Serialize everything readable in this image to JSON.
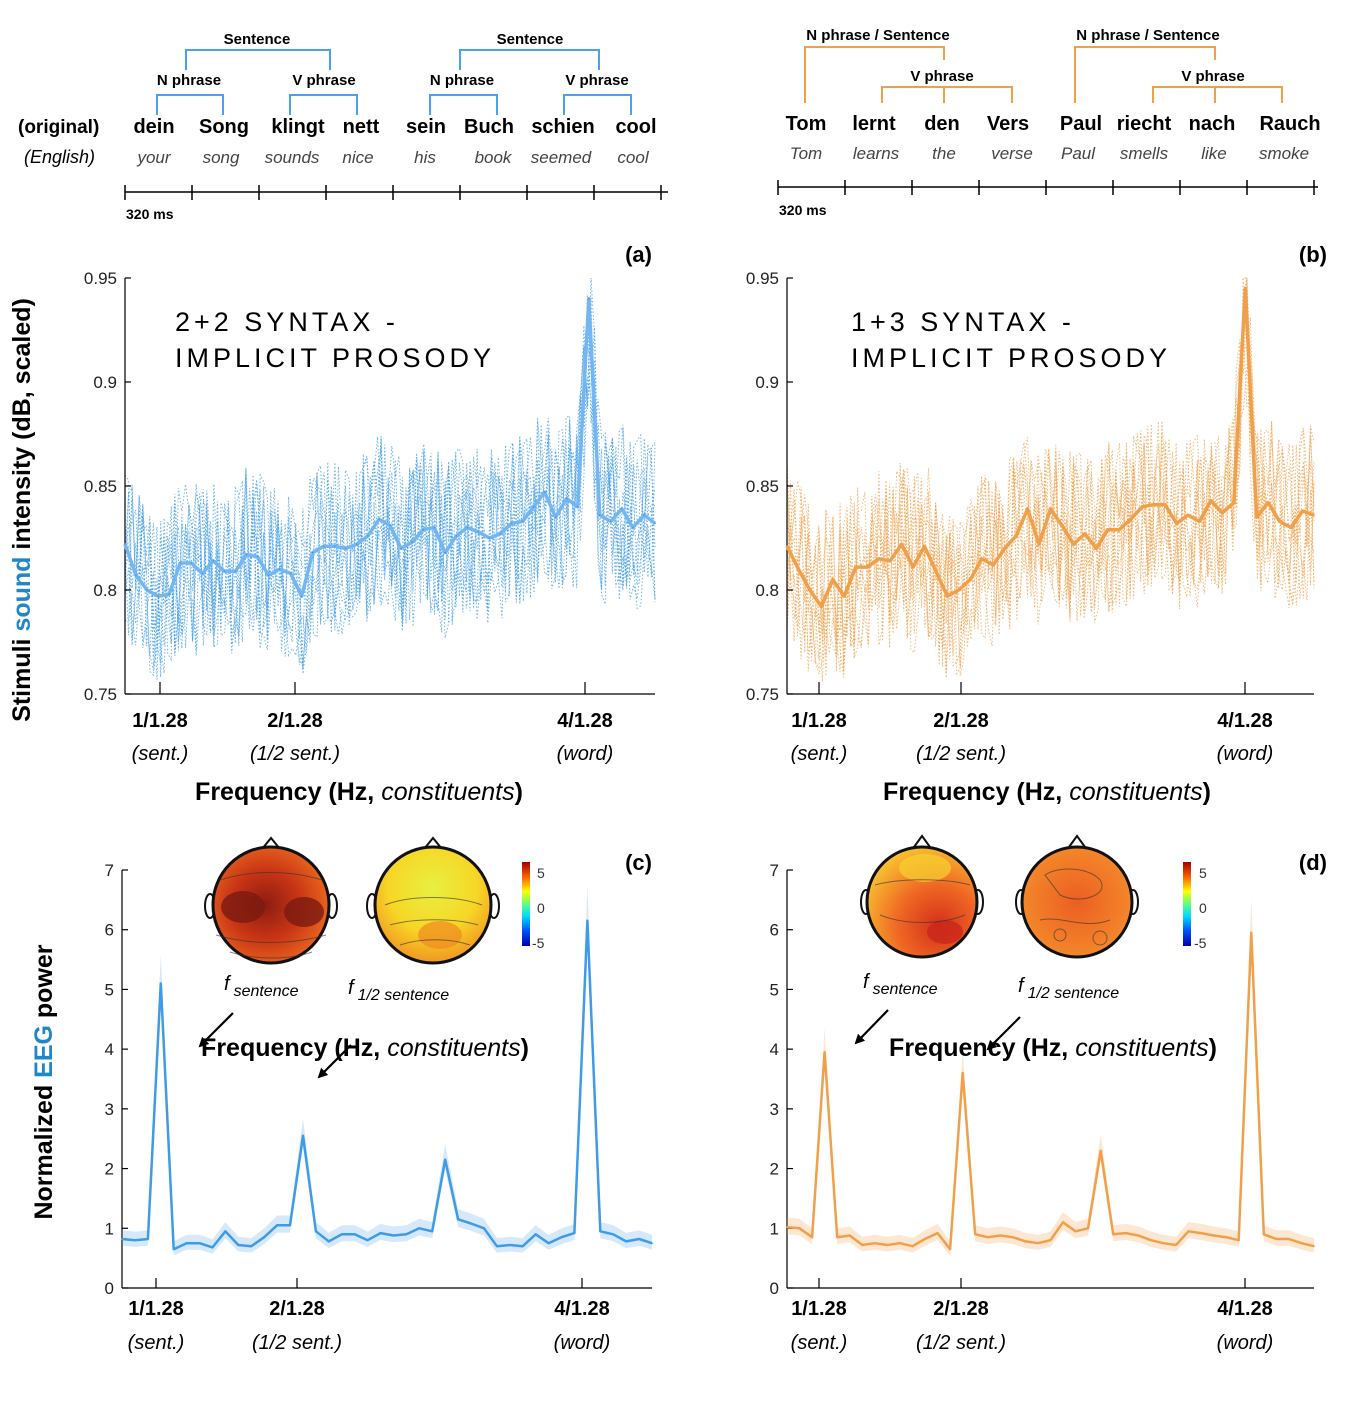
{
  "colors": {
    "blue": "#3f9be6",
    "blue_label": "#1f86c8",
    "orange": "#f0a04b",
    "topo_outline": "#111111"
  },
  "ylabels": {
    "top": {
      "pre": "Stimuli ",
      "hl": "sound",
      "post": " intensity (dB, scaled)"
    },
    "bottom": {
      "pre": "Normalized ",
      "hl": "EEG",
      "post": " power"
    }
  },
  "trees": [
    {
      "row_labels": [
        "(original)",
        "(English)"
      ],
      "words": [
        "dein",
        "Song",
        "klingt",
        "nett",
        "sein",
        "Buch",
        "schien",
        "cool"
      ],
      "gloss": [
        "your",
        "song",
        "sounds",
        "nice",
        "his",
        "book",
        "seemed",
        "cool"
      ],
      "nodes": {
        "top": "Sentence",
        "np": "N phrase",
        "vp": "V phrase"
      },
      "timeline_label": "320 ms"
    },
    {
      "words": [
        "Tom",
        "lernt",
        "den",
        "Vers",
        "Paul",
        "riecht",
        "nach",
        "Rauch"
      ],
      "gloss": [
        "Tom",
        "learns",
        "the",
        "verse",
        "Paul",
        "smells",
        "like",
        "smoke"
      ],
      "nodes": {
        "top": "N phrase / Sentence",
        "vp": "V phrase"
      },
      "timeline_label": "320 ms"
    }
  ],
  "chart_data": [
    {
      "panel": "(a)",
      "type": "line",
      "color": "blue",
      "title_lines": [
        "2+2 SYNTAX -",
        "IMPLICIT PROSODY"
      ],
      "ylim": [
        0.75,
        0.95
      ],
      "yticks": [
        "0.75",
        "0.8",
        "0.85",
        "0.9",
        "0.95"
      ],
      "xticks": [
        {
          "label": "1/1.28",
          "sub": "(sent.)"
        },
        {
          "label": "2/1.28",
          "sub": "(1/2 sent.)"
        },
        {
          "label": "4/1.28",
          "sub": "(word)"
        }
      ],
      "xlabel": {
        "pre": "Frequency (Hz, ",
        "it": "constituents",
        "post": ")"
      },
      "series": [
        {
          "role": "mean",
          "values": [
            0.822,
            0.807,
            0.8,
            0.797,
            0.798,
            0.813,
            0.813,
            0.808,
            0.814,
            0.809,
            0.809,
            0.817,
            0.816,
            0.807,
            0.81,
            0.808,
            0.797,
            0.818,
            0.821,
            0.821,
            0.82,
            0.822,
            0.826,
            0.834,
            0.831,
            0.82,
            0.823,
            0.829,
            0.83,
            0.818,
            0.826,
            0.83,
            0.828,
            0.825,
            0.827,
            0.832,
            0.833,
            0.84,
            0.847,
            0.835,
            0.844,
            0.84,
            0.94,
            0.836,
            0.833,
            0.839,
            0.83,
            0.836,
            0.832
          ]
        }
      ]
    },
    {
      "panel": "(b)",
      "type": "line",
      "color": "orange",
      "title_lines": [
        "1+3 SYNTAX -",
        "IMPLICIT PROSODY"
      ],
      "ylim": [
        0.75,
        0.95
      ],
      "yticks": [
        "0.75",
        "0.8",
        "0.85",
        "0.9",
        "0.95"
      ],
      "xticks": [
        {
          "label": "1/1.28",
          "sub": "(sent.)"
        },
        {
          "label": "2/1.28",
          "sub": "(1/2 sent.)"
        },
        {
          "label": "4/1.28",
          "sub": "(word)"
        }
      ],
      "xlabel": {
        "pre": "Frequency (Hz, ",
        "it": "constituents",
        "post": ")"
      },
      "series": [
        {
          "role": "mean",
          "values": [
            0.821,
            0.81,
            0.8,
            0.792,
            0.805,
            0.797,
            0.811,
            0.811,
            0.815,
            0.814,
            0.822,
            0.811,
            0.821,
            0.809,
            0.797,
            0.8,
            0.805,
            0.815,
            0.812,
            0.82,
            0.826,
            0.839,
            0.822,
            0.839,
            0.831,
            0.822,
            0.827,
            0.82,
            0.829,
            0.829,
            0.834,
            0.84,
            0.841,
            0.841,
            0.832,
            0.836,
            0.833,
            0.843,
            0.837,
            0.842,
            0.945,
            0.835,
            0.842,
            0.833,
            0.83,
            0.838,
            0.836
          ]
        }
      ]
    },
    {
      "panel": "(c)",
      "type": "line",
      "color": "blue",
      "ylim": [
        0,
        7
      ],
      "yticks": [
        "0",
        "1",
        "2",
        "3",
        "4",
        "5",
        "6",
        "7"
      ],
      "xticks": [
        {
          "label": "1/1.28",
          "sub": "(sent.)"
        },
        {
          "label": "2/1.28",
          "sub": "(1/2 sent.)"
        },
        {
          "label": "4/1.28",
          "sub": "(word)"
        }
      ],
      "xlabel": {
        "pre": "Frequency (Hz, ",
        "it": "constituents",
        "post": ")"
      },
      "annotations": [
        {
          "f": "f",
          "sub": "sentence"
        },
        {
          "f": "f",
          "sub": "1/2 sentence"
        }
      ],
      "colorbar": {
        "ticks": [
          "5",
          "0",
          "-5"
        ],
        "range": [
          -5,
          5
        ]
      },
      "series": [
        {
          "role": "mean",
          "values": [
            0.82,
            0.8,
            0.82,
            5.1,
            0.65,
            0.75,
            0.75,
            0.68,
            0.95,
            0.72,
            0.7,
            0.85,
            1.05,
            1.05,
            2.55,
            0.95,
            0.78,
            0.9,
            0.9,
            0.8,
            0.92,
            0.88,
            0.9,
            1.0,
            0.95,
            2.15,
            1.15,
            1.08,
            1.0,
            0.7,
            0.72,
            0.7,
            0.9,
            0.75,
            0.85,
            0.92,
            6.15,
            0.95,
            0.9,
            0.78,
            0.82,
            0.75
          ]
        }
      ]
    },
    {
      "panel": "(d)",
      "type": "line",
      "color": "orange",
      "ylim": [
        0,
        7
      ],
      "yticks": [
        "0",
        "1",
        "2",
        "3",
        "4",
        "5",
        "6",
        "7"
      ],
      "xticks": [
        {
          "label": "1/1.28",
          "sub": "(sent.)"
        },
        {
          "label": "2/1.28",
          "sub": "(1/2 sent.)"
        },
        {
          "label": "4/1.28",
          "sub": "(word)"
        }
      ],
      "xlabel": {
        "pre": "Frequency (Hz, ",
        "it": "constituents",
        "post": ")"
      },
      "annotations": [
        {
          "f": "f",
          "sub": "sentence"
        },
        {
          "f": "f",
          "sub": "1/2 sentence"
        }
      ],
      "colorbar": {
        "ticks": [
          "5",
          "0",
          "-5"
        ],
        "range": [
          -5,
          5
        ]
      },
      "series": [
        {
          "role": "mean",
          "values": [
            1.02,
            1.0,
            0.85,
            3.95,
            0.85,
            0.88,
            0.72,
            0.75,
            0.72,
            0.75,
            0.7,
            0.82,
            0.92,
            0.65,
            3.6,
            0.9,
            0.85,
            0.88,
            0.85,
            0.78,
            0.75,
            0.8,
            1.1,
            0.95,
            1.0,
            2.3,
            0.9,
            0.92,
            0.88,
            0.8,
            0.75,
            0.72,
            0.95,
            0.92,
            0.88,
            0.85,
            0.8,
            5.95,
            0.9,
            0.82,
            0.82,
            0.75,
            0.7
          ]
        }
      ]
    }
  ]
}
